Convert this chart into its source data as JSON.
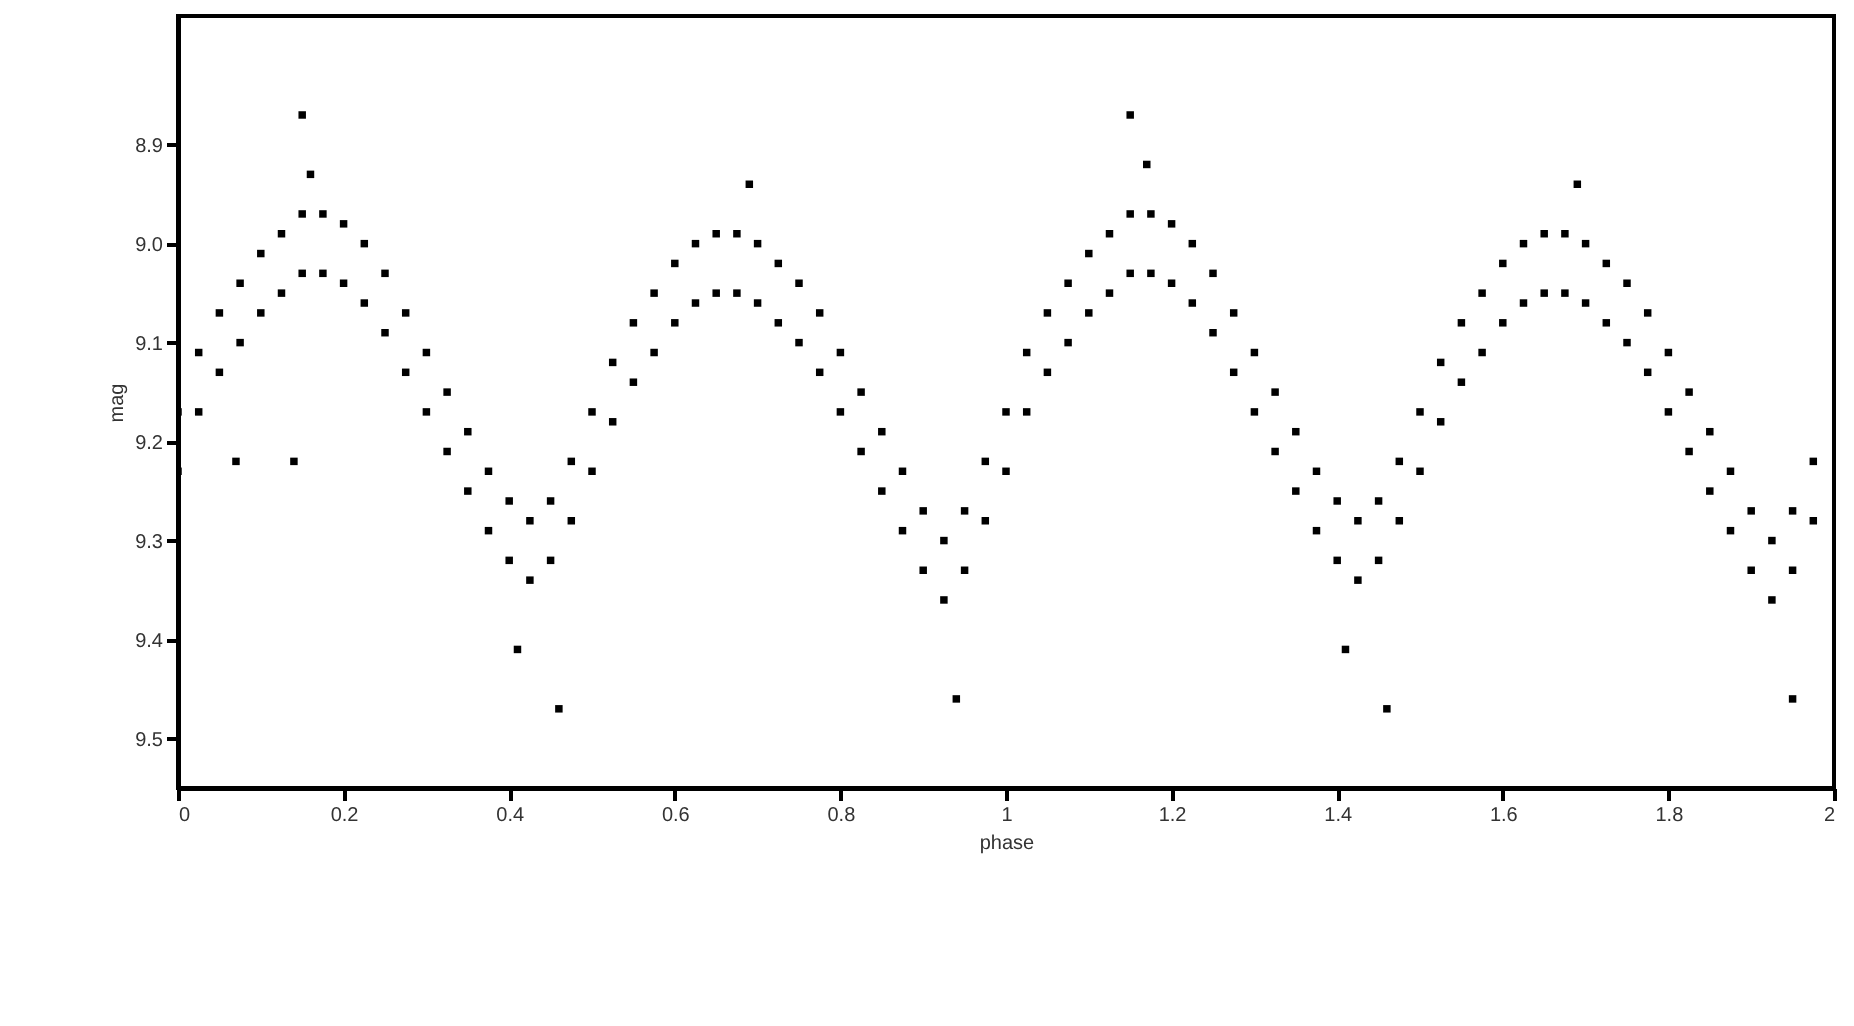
{
  "chart_data": {
    "type": "scatter",
    "xlabel": "phase",
    "ylabel": "mag",
    "xlim": [
      0,
      2
    ],
    "ylim": [
      9.55,
      8.77
    ],
    "xticks": [
      0,
      0.2,
      0.4,
      0.6,
      0.8,
      1,
      1.2,
      1.4,
      1.6,
      1.8,
      2
    ],
    "yticks": [
      8.9,
      {
        "value": 9.0,
        "label": "9.0"
      },
      9.1,
      9.2,
      9.3,
      9.4,
      9.5
    ],
    "grid": false,
    "marker": "square",
    "series": [
      {
        "color": "#000000",
        "x": [
          0,
          0,
          0.025,
          0.025,
          0.05,
          0.05,
          0.075,
          0.075,
          0.1,
          0.1,
          0.125,
          0.125,
          0.15,
          0.15,
          0.175,
          0.175,
          0.2,
          0.2,
          0.225,
          0.225,
          0.25,
          0.25,
          0.275,
          0.275,
          0.3,
          0.3,
          0.325,
          0.325,
          0.35,
          0.35,
          0.375,
          0.375,
          0.4,
          0.4,
          0.425,
          0.425,
          0.45,
          0.45,
          0.475,
          0.475,
          0.5,
          0.5,
          0.525,
          0.525,
          0.55,
          0.55,
          0.575,
          0.575,
          0.6,
          0.6,
          0.625,
          0.625,
          0.65,
          0.65,
          0.675,
          0.675,
          0.7,
          0.7,
          0.725,
          0.725,
          0.75,
          0.75,
          0.775,
          0.775,
          0.8,
          0.8,
          0.825,
          0.825,
          0.85,
          0.85,
          0.875,
          0.875,
          0.9,
          0.9,
          0.925,
          0.925,
          0.95,
          0.95,
          0.975,
          0.975,
          1,
          1,
          1.025,
          1.025,
          1.05,
          1.05,
          1.075,
          1.075,
          1.1,
          1.1,
          1.125,
          1.125,
          1.15,
          1.15,
          1.175,
          1.175,
          1.2,
          1.2,
          1.225,
          1.225,
          1.25,
          1.25,
          1.275,
          1.275,
          1.3,
          1.3,
          1.325,
          1.325,
          1.35,
          1.35,
          1.375,
          1.375,
          1.4,
          1.4,
          1.425,
          1.425,
          1.45,
          1.45,
          1.475,
          1.475,
          1.5,
          1.5,
          1.525,
          1.525,
          1.55,
          1.55,
          1.575,
          1.575,
          1.6,
          1.6,
          1.625,
          1.625,
          1.65,
          1.65,
          1.675,
          1.675,
          1.7,
          1.7,
          1.725,
          1.725,
          1.75,
          1.75,
          1.775,
          1.775,
          1.8,
          1.8,
          1.825,
          1.825,
          1.85,
          1.85,
          1.875,
          1.875,
          1.9,
          1.9,
          1.925,
          1.925,
          1.95,
          1.95,
          1.975,
          1.975,
          0.15,
          0.16,
          0.07,
          0.14,
          0.41,
          0.46,
          0.69,
          0.94,
          1.15,
          1.17,
          1.41,
          1.46,
          1.69,
          1.95
        ],
        "values": [
          9.17,
          9.23,
          9.11,
          9.17,
          9.07,
          9.13,
          9.04,
          9.1,
          9.01,
          9.07,
          8.99,
          9.05,
          8.97,
          9.03,
          8.97,
          9.03,
          8.98,
          9.04,
          9.0,
          9.06,
          9.03,
          9.09,
          9.07,
          9.13,
          9.11,
          9.17,
          9.15,
          9.21,
          9.19,
          9.25,
          9.23,
          9.29,
          9.26,
          9.32,
          9.28,
          9.34,
          9.26,
          9.32,
          9.22,
          9.28,
          9.17,
          9.23,
          9.12,
          9.18,
          9.08,
          9.14,
          9.05,
          9.11,
          9.02,
          9.08,
          9.0,
          9.06,
          8.99,
          9.05,
          8.99,
          9.05,
          9.0,
          9.06,
          9.02,
          9.08,
          9.04,
          9.1,
          9.07,
          9.13,
          9.11,
          9.17,
          9.15,
          9.21,
          9.19,
          9.25,
          9.23,
          9.29,
          9.27,
          9.33,
          9.3,
          9.36,
          9.27,
          9.33,
          9.22,
          9.28,
          9.17,
          9.23,
          9.11,
          9.17,
          9.07,
          9.13,
          9.04,
          9.1,
          9.01,
          9.07,
          8.99,
          9.05,
          8.97,
          9.03,
          8.97,
          9.03,
          8.98,
          9.04,
          9.0,
          9.06,
          9.03,
          9.09,
          9.07,
          9.13,
          9.11,
          9.17,
          9.15,
          9.21,
          9.19,
          9.25,
          9.23,
          9.29,
          9.26,
          9.32,
          9.28,
          9.34,
          9.26,
          9.32,
          9.22,
          9.28,
          9.17,
          9.23,
          9.12,
          9.18,
          9.08,
          9.14,
          9.05,
          9.11,
          9.02,
          9.08,
          9.0,
          9.06,
          8.99,
          9.05,
          8.99,
          9.05,
          9.0,
          9.06,
          9.02,
          9.08,
          9.04,
          9.1,
          9.07,
          9.13,
          9.11,
          9.17,
          9.15,
          9.21,
          9.19,
          9.25,
          9.23,
          9.29,
          9.27,
          9.33,
          9.3,
          9.36,
          9.27,
          9.33,
          9.22,
          9.28,
          8.87,
          8.93,
          9.22,
          9.22,
          9.41,
          9.47,
          8.94,
          9.46,
          8.87,
          8.92,
          9.41,
          9.47,
          8.94,
          9.46
        ]
      }
    ]
  }
}
